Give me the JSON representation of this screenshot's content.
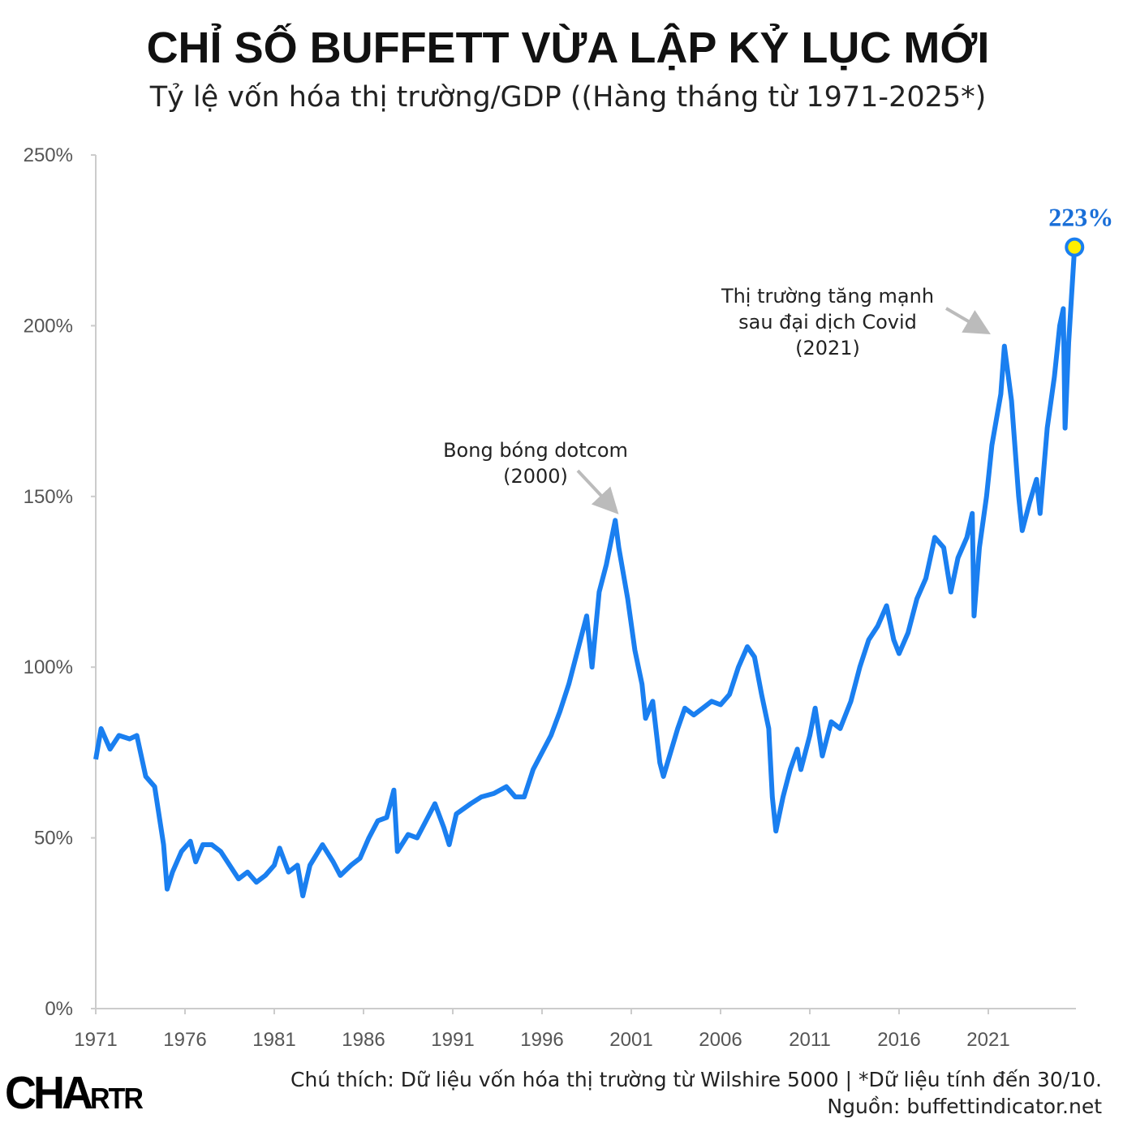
{
  "title": "CHỈ SỐ BUFFETT VỪA LẬP KỶ LỤC MỚI",
  "subtitle": "Tỷ lệ vốn hóa thị trường/GDP ((Hàng tháng từ 1971-2025*)",
  "footer": {
    "note": "Chú thích: Dữ liệu vốn hóa thị trường từ Wilshire 5000 | *Dữ liệu tính đến 30/10.",
    "source": "Nguồn: buffettindicator.net",
    "logo": "CHARTR"
  },
  "chart_data": {
    "type": "line",
    "title": "CHỈ SỐ BUFFETT VỪA LẬP KỶ LỤC MỚI",
    "xlabel": "",
    "ylabel": "",
    "xlim": [
      1971,
      2025.9
    ],
    "ylim": [
      0,
      250
    ],
    "grid": false,
    "line_color": "#1a7ff0",
    "highlight_color": "#ffee00",
    "x_ticks": [
      "1971",
      "1976",
      "1981",
      "1986",
      "1991",
      "1996",
      "2001",
      "2006",
      "2011",
      "2016",
      "2021"
    ],
    "y_ticks": [
      "0%",
      "50%",
      "100%",
      "150%",
      "200%",
      "250%"
    ],
    "end_label": "223%",
    "annotations": [
      {
        "lines": [
          "Bong bóng dotcom",
          "(2000)"
        ],
        "x": 2000.1,
        "y": 143
      },
      {
        "lines": [
          "Thị trường tăng mạnh",
          "sau đại dịch Covid",
          "(2021)"
        ],
        "x": 2021.9,
        "y": 196
      }
    ],
    "x": [
      1971.0,
      1971.3,
      1971.8,
      1972.3,
      1972.9,
      1973.3,
      1973.8,
      1974.3,
      1974.8,
      1975.0,
      1975.3,
      1975.8,
      1976.3,
      1976.6,
      1977.0,
      1977.5,
      1978.0,
      1978.5,
      1979.0,
      1979.5,
      1980.0,
      1980.5,
      1981.0,
      1981.3,
      1981.8,
      1982.3,
      1982.6,
      1983.0,
      1983.7,
      1984.3,
      1984.7,
      1985.3,
      1985.8,
      1986.3,
      1986.8,
      1987.3,
      1987.7,
      1987.9,
      1988.5,
      1989.0,
      1989.6,
      1990.0,
      1990.5,
      1990.8,
      1991.2,
      1992.0,
      1992.6,
      1993.3,
      1994.0,
      1994.5,
      1995.0,
      1995.5,
      1996.0,
      1996.5,
      1997.0,
      1997.5,
      1998.0,
      1998.5,
      1998.8,
      1999.2,
      1999.6,
      2000.1,
      2000.3,
      2000.8,
      2001.2,
      2001.6,
      2001.8,
      2002.2,
      2002.6,
      2002.8,
      2003.2,
      2003.6,
      2004.0,
      2004.5,
      2005.0,
      2005.5,
      2006.0,
      2006.5,
      2007.0,
      2007.5,
      2007.9,
      2008.3,
      2008.7,
      2008.9,
      2009.1,
      2009.5,
      2009.9,
      2010.3,
      2010.5,
      2011.0,
      2011.3,
      2011.7,
      2012.2,
      2012.7,
      2013.3,
      2013.8,
      2014.3,
      2014.8,
      2015.3,
      2015.7,
      2016.0,
      2016.5,
      2017.0,
      2017.5,
      2018.0,
      2018.5,
      2018.9,
      2019.3,
      2019.8,
      2020.1,
      2020.2,
      2020.5,
      2020.9,
      2021.2,
      2021.7,
      2021.9,
      2022.3,
      2022.7,
      2022.9,
      2023.3,
      2023.7,
      2023.9,
      2024.3,
      2024.7,
      2025.0,
      2025.2,
      2025.3,
      2025.5,
      2025.83
    ],
    "values": [
      73,
      82,
      76,
      80,
      79,
      80,
      68,
      65,
      48,
      35,
      40,
      46,
      49,
      43,
      48,
      48,
      46,
      42,
      38,
      40,
      37,
      39,
      42,
      47,
      40,
      42,
      33,
      42,
      48,
      43,
      39,
      42,
      44,
      50,
      55,
      56,
      64,
      46,
      51,
      50,
      56,
      60,
      53,
      48,
      57,
      60,
      62,
      63,
      65,
      62,
      62,
      70,
      75,
      80,
      87,
      95,
      105,
      115,
      100,
      122,
      130,
      143,
      135,
      120,
      105,
      95,
      85,
      90,
      72,
      68,
      75,
      82,
      88,
      86,
      88,
      90,
      89,
      92,
      100,
      106,
      103,
      92,
      82,
      62,
      52,
      62,
      70,
      76,
      70,
      80,
      88,
      74,
      84,
      82,
      90,
      100,
      108,
      112,
      118,
      108,
      104,
      110,
      120,
      126,
      138,
      135,
      122,
      132,
      138,
      145,
      115,
      135,
      150,
      165,
      180,
      194,
      178,
      150,
      140,
      148,
      155,
      145,
      170,
      185,
      200,
      205,
      170,
      195,
      223
    ]
  }
}
